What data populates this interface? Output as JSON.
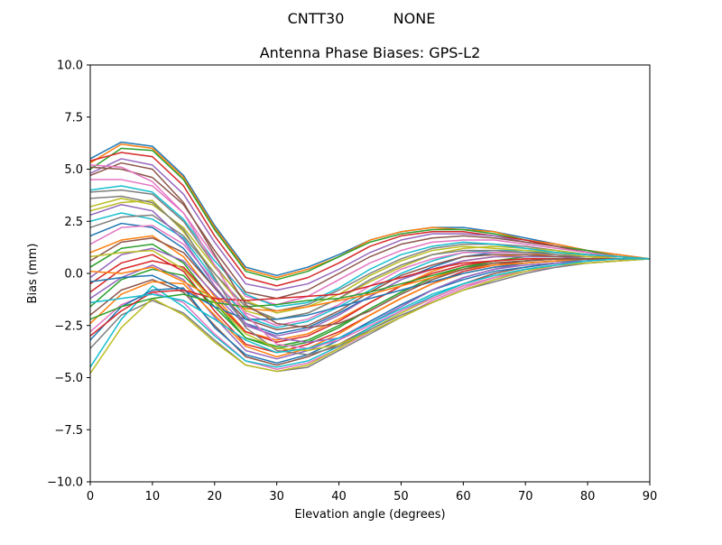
{
  "chart_data": {
    "type": "line",
    "suptitle_left": "CNTT30",
    "suptitle_right": "NONE",
    "title": "Antenna Phase Biases: GPS-L2",
    "xlabel": "Elevation angle (degrees)",
    "ylabel": "Bias (mm)",
    "xlim": [
      0,
      90
    ],
    "ylim": [
      -10,
      10
    ],
    "xticks": [
      0,
      10,
      20,
      30,
      40,
      50,
      60,
      70,
      80,
      90
    ],
    "yticks": [
      -10.0,
      -7.5,
      -5.0,
      -2.5,
      0.0,
      2.5,
      5.0,
      7.5,
      10.0
    ],
    "grid": false,
    "legend": "none",
    "palette": [
      "#1f77b4",
      "#ff7f0e",
      "#2ca02c",
      "#d62728",
      "#9467bd",
      "#8c564b",
      "#e377c2",
      "#7f7f7f",
      "#bcbd22",
      "#17becf"
    ],
    "x": [
      0,
      5,
      10,
      15,
      20,
      25,
      30,
      35,
      40,
      45,
      50,
      55,
      60,
      65,
      70,
      75,
      80,
      85,
      90
    ],
    "series": [
      {
        "values": [
          5.5,
          6.3,
          6.1,
          4.7,
          2.3,
          0.3,
          -0.1,
          0.3,
          0.9,
          1.6,
          2.0,
          2.2,
          2.2,
          2.0,
          1.7,
          1.4,
          1.1,
          0.9,
          0.7
        ]
      },
      {
        "values": [
          5.3,
          6.2,
          6.0,
          4.6,
          2.2,
          0.2,
          -0.2,
          0.2,
          0.8,
          1.6,
          2.0,
          2.2,
          2.1,
          2.0,
          1.6,
          1.4,
          1.1,
          0.9,
          0.7
        ]
      },
      {
        "values": [
          5.0,
          6.0,
          5.9,
          4.5,
          2.1,
          0.1,
          -0.3,
          0.1,
          0.8,
          1.5,
          1.9,
          2.1,
          2.1,
          1.9,
          1.6,
          1.3,
          1.1,
          0.8,
          0.7
        ]
      },
      {
        "values": [
          5.4,
          5.8,
          5.6,
          4.2,
          1.8,
          -0.2,
          -0.6,
          -0.2,
          0.5,
          1.3,
          1.8,
          2.0,
          2.0,
          1.8,
          1.6,
          1.3,
          1.0,
          0.8,
          0.7
        ]
      },
      {
        "values": [
          4.8,
          5.5,
          5.2,
          3.8,
          1.5,
          -0.5,
          -0.8,
          -0.5,
          0.2,
          1.0,
          1.6,
          1.9,
          1.9,
          1.8,
          1.5,
          1.3,
          1.0,
          0.8,
          0.7
        ]
      },
      {
        "values": [
          5.1,
          5.0,
          4.6,
          3.3,
          1.1,
          -0.9,
          -1.2,
          -0.8,
          0.0,
          0.8,
          1.4,
          1.7,
          1.8,
          1.7,
          1.5,
          1.3,
          1.0,
          0.8,
          0.7
        ]
      },
      {
        "values": [
          4.5,
          4.5,
          4.2,
          2.9,
          0.8,
          -1.1,
          -1.5,
          -1.1,
          -0.3,
          0.5,
          1.1,
          1.5,
          1.6,
          1.6,
          1.4,
          1.2,
          1.0,
          0.8,
          0.7
        ]
      },
      {
        "values": [
          3.9,
          4.0,
          3.8,
          2.5,
          0.4,
          -1.4,
          -1.8,
          -1.5,
          -0.8,
          0.0,
          0.7,
          1.2,
          1.4,
          1.4,
          1.3,
          1.1,
          0.9,
          0.8,
          0.7
        ]
      },
      {
        "values": [
          3.0,
          3.4,
          3.5,
          2.0,
          0.0,
          -1.8,
          -2.2,
          -1.9,
          -1.2,
          -0.4,
          0.3,
          0.9,
          1.2,
          1.3,
          1.2,
          1.1,
          0.9,
          0.8,
          0.7
        ]
      },
      {
        "values": [
          2.5,
          2.9,
          2.6,
          1.7,
          -0.3,
          -2.1,
          -2.6,
          -2.3,
          -1.6,
          -0.8,
          0.0,
          0.6,
          1.0,
          1.1,
          1.1,
          1.0,
          0.9,
          0.8,
          0.7
        ]
      },
      {
        "values": [
          1.8,
          2.4,
          2.2,
          1.2,
          -0.7,
          -2.4,
          -2.9,
          -2.6,
          -1.9,
          -1.1,
          -0.3,
          0.3,
          0.8,
          1.0,
          1.0,
          1.0,
          0.9,
          0.8,
          0.7
        ]
      },
      {
        "values": [
          1.0,
          1.6,
          1.8,
          0.8,
          -1.1,
          -2.8,
          -3.2,
          -2.9,
          -2.2,
          -1.4,
          -0.6,
          0.1,
          0.6,
          0.8,
          0.9,
          0.9,
          0.8,
          0.8,
          0.7
        ]
      },
      {
        "values": [
          0.3,
          1.2,
          1.4,
          0.5,
          -1.4,
          -3.1,
          -3.5,
          -3.2,
          -2.5,
          -1.7,
          -0.9,
          -0.2,
          0.3,
          0.6,
          0.8,
          0.8,
          0.8,
          0.7,
          0.7
        ]
      },
      {
        "values": [
          -0.5,
          0.5,
          0.9,
          0.1,
          -1.8,
          -3.4,
          -3.8,
          -3.4,
          -2.8,
          -2.0,
          -1.2,
          -0.5,
          0.1,
          0.4,
          0.6,
          0.7,
          0.7,
          0.7,
          0.7
        ]
      },
      {
        "values": [
          -1.2,
          -0.2,
          0.4,
          -0.3,
          -2.1,
          -3.7,
          -4.1,
          -3.7,
          -3.1,
          -2.3,
          -1.5,
          -0.8,
          -0.2,
          0.2,
          0.5,
          0.6,
          0.7,
          0.7,
          0.7
        ]
      },
      {
        "values": [
          -2.0,
          -0.8,
          -0.3,
          -0.9,
          -2.5,
          -4.0,
          -4.4,
          -4.0,
          -3.4,
          -2.6,
          -1.8,
          -1.1,
          -0.5,
          0.0,
          0.3,
          0.5,
          0.6,
          0.7,
          0.7
        ]
      },
      {
        "values": [
          -2.8,
          -1.5,
          -0.9,
          -1.4,
          -2.9,
          -4.2,
          -4.6,
          -4.3,
          -3.6,
          -2.8,
          -2.1,
          -1.3,
          -0.7,
          -0.2,
          0.2,
          0.4,
          0.6,
          0.7,
          0.7
        ]
      },
      {
        "values": [
          -3.6,
          -2.0,
          -1.3,
          -1.9,
          -3.2,
          -4.4,
          -4.7,
          -4.5,
          -3.7,
          -2.9,
          -2.1,
          -1.4,
          -0.8,
          -0.3,
          0.1,
          0.4,
          0.5,
          0.6,
          0.7
        ]
      },
      {
        "values": [
          -4.8,
          -2.6,
          -1.2,
          -2.0,
          -3.3,
          -4.4,
          -4.7,
          -4.4,
          -3.6,
          -2.7,
          -1.9,
          -1.2,
          -0.6,
          -0.2,
          0.2,
          0.4,
          0.5,
          0.6,
          0.7
        ]
      },
      {
        "values": [
          -4.5,
          -2.2,
          -0.6,
          -1.6,
          -3.0,
          -4.2,
          -4.5,
          -4.2,
          -3.5,
          -2.6,
          -1.8,
          -1.1,
          -0.5,
          -0.1,
          0.2,
          0.4,
          0.6,
          0.7,
          0.7
        ]
      },
      {
        "values": [
          -3.2,
          -1.6,
          -0.8,
          -0.7,
          -2.6,
          -3.9,
          -4.3,
          -3.9,
          -3.2,
          -2.3,
          -1.5,
          -0.8,
          -0.3,
          0.1,
          0.3,
          0.5,
          0.6,
          0.7,
          0.7
        ]
      },
      {
        "values": [
          -2.4,
          -1.0,
          -0.4,
          -0.5,
          -2.0,
          -3.5,
          -4.0,
          -3.6,
          -2.9,
          -2.0,
          -1.2,
          -0.5,
          0.0,
          0.3,
          0.5,
          0.6,
          0.7,
          0.7,
          0.7
        ]
      },
      {
        "values": [
          -1.6,
          -0.3,
          0.2,
          -0.1,
          -1.6,
          -3.1,
          -3.6,
          -3.3,
          -2.6,
          -1.7,
          -0.9,
          -0.2,
          0.2,
          0.5,
          0.6,
          0.7,
          0.7,
          0.7,
          0.7
        ]
      },
      {
        "values": [
          -0.9,
          0.2,
          0.6,
          0.3,
          -1.3,
          -2.8,
          -3.3,
          -3.0,
          -2.3,
          -1.4,
          -0.6,
          0.0,
          0.4,
          0.6,
          0.7,
          0.7,
          0.7,
          0.7,
          0.7
        ]
      },
      {
        "values": [
          -0.2,
          0.9,
          1.2,
          0.6,
          -1.0,
          -2.5,
          -3.0,
          -2.7,
          -2.0,
          -1.1,
          -0.3,
          0.2,
          0.6,
          0.8,
          0.8,
          0.8,
          0.7,
          0.7,
          0.7
        ]
      },
      {
        "values": [
          0.6,
          1.5,
          1.7,
          1.0,
          -0.7,
          -2.2,
          -2.7,
          -2.5,
          -1.8,
          -0.9,
          -0.1,
          0.4,
          0.8,
          0.9,
          0.9,
          0.8,
          0.8,
          0.7,
          0.7
        ]
      },
      {
        "values": [
          1.4,
          2.2,
          2.3,
          1.4,
          -0.4,
          -1.9,
          -2.5,
          -2.2,
          -1.5,
          -0.6,
          0.2,
          0.7,
          1.0,
          1.0,
          1.0,
          0.9,
          0.8,
          0.7,
          0.7
        ]
      },
      {
        "values": [
          2.2,
          2.7,
          2.8,
          1.8,
          0.0,
          -1.6,
          -2.2,
          -1.9,
          -1.2,
          -0.3,
          0.4,
          0.9,
          1.1,
          1.1,
          1.0,
          0.9,
          0.8,
          0.7,
          0.7
        ]
      },
      {
        "values": [
          3.2,
          3.6,
          3.3,
          2.2,
          0.3,
          -1.3,
          -1.9,
          -1.6,
          -1.0,
          -0.1,
          0.6,
          1.1,
          1.3,
          1.2,
          1.1,
          1.0,
          0.8,
          0.7,
          0.7
        ]
      },
      {
        "values": [
          4.0,
          4.2,
          3.9,
          2.6,
          0.6,
          -1.0,
          -1.6,
          -1.4,
          -0.7,
          0.2,
          0.9,
          1.3,
          1.5,
          1.4,
          1.2,
          1.0,
          0.9,
          0.8,
          0.7
        ]
      },
      {
        "values": [
          -0.4,
          -0.2,
          -0.1,
          -0.8,
          -1.6,
          -2.2,
          -2.2,
          -2.0,
          -1.6,
          -1.2,
          -0.8,
          -0.4,
          0.0,
          0.3,
          0.5,
          0.6,
          0.6,
          0.7,
          0.7
        ]
      },
      {
        "values": [
          0.1,
          0.0,
          0.3,
          -0.4,
          -1.2,
          -1.7,
          -1.8,
          -1.6,
          -1.3,
          -1.0,
          -0.6,
          -0.2,
          0.2,
          0.4,
          0.5,
          0.6,
          0.7,
          0.7,
          0.7
        ]
      },
      {
        "values": [
          -2.2,
          -1.6,
          -1.2,
          -1.0,
          -1.4,
          -1.6,
          -1.5,
          -1.3,
          -1.2,
          -0.9,
          -0.5,
          -0.1,
          0.3,
          0.5,
          0.6,
          0.7,
          0.7,
          0.7,
          0.7
        ]
      },
      {
        "values": [
          -3.0,
          -1.8,
          -0.9,
          -0.8,
          -1.2,
          -1.3,
          -1.2,
          -1.1,
          -1.0,
          -0.6,
          -0.2,
          0.2,
          0.5,
          0.6,
          0.7,
          0.7,
          0.7,
          0.7,
          0.7
        ]
      },
      {
        "values": [
          2.8,
          3.3,
          3.0,
          1.6,
          -0.6,
          -2.4,
          -3.1,
          -3.3,
          -3.1,
          -2.4,
          -1.6,
          -0.8,
          -0.2,
          0.2,
          0.4,
          0.5,
          0.6,
          0.7,
          0.7
        ]
      },
      {
        "values": [
          4.7,
          5.3,
          5.0,
          3.4,
          0.9,
          -1.5,
          -2.4,
          -2.6,
          -2.4,
          -1.8,
          -1.0,
          -0.3,
          0.2,
          0.5,
          0.6,
          0.7,
          0.7,
          0.7,
          0.7
        ]
      },
      {
        "values": [
          5.2,
          5.1,
          4.4,
          2.9,
          0.4,
          -2.0,
          -3.4,
          -3.6,
          -3.2,
          -2.5,
          -1.8,
          -1.2,
          -0.6,
          -0.2,
          0.1,
          0.3,
          0.5,
          0.6,
          0.7
        ]
      },
      {
        "values": [
          3.6,
          3.7,
          3.4,
          2.1,
          -0.2,
          -2.6,
          -3.7,
          -3.9,
          -3.5,
          -2.7,
          -2.0,
          -1.4,
          -0.8,
          -0.4,
          0.0,
          0.3,
          0.5,
          0.6,
          0.7
        ]
      },
      {
        "values": [
          0.8,
          1.0,
          1.1,
          0.2,
          -1.4,
          -2.9,
          -3.6,
          -3.7,
          -3.4,
          -2.8,
          -2.1,
          -1.4,
          -0.8,
          -0.3,
          0.1,
          0.4,
          0.5,
          0.6,
          0.7
        ]
      },
      {
        "values": [
          -1.4,
          -1.2,
          -1.0,
          -1.3,
          -2.2,
          -3.2,
          -3.8,
          -3.6,
          -3.1,
          -2.4,
          -1.7,
          -1.0,
          -0.5,
          -0.1,
          0.2,
          0.4,
          0.6,
          0.7,
          0.7
        ]
      }
    ]
  }
}
